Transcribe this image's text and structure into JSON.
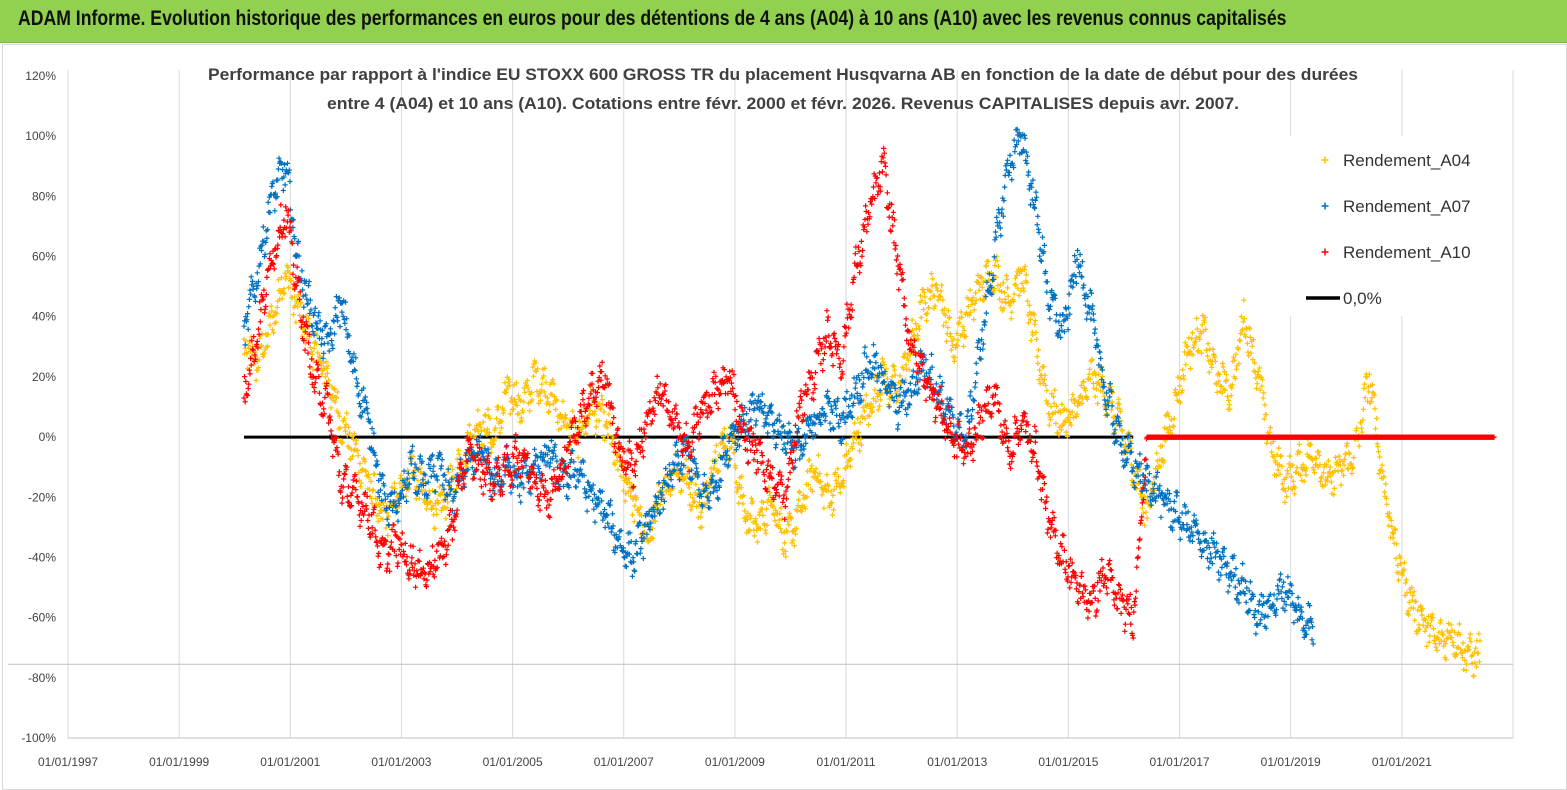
{
  "header": {
    "title": "ADAM Informe. Evolution historique des performances en euros pour des détentions de 4 ans (A04) à 10 ans (A10) avec les revenus connus capitalisés"
  },
  "chart_data": {
    "type": "scatter",
    "title_line1": "Performance par rapport à l'indice EU STOXX 600 GROSS TR  du placement Husqvarna AB en fonction de la date de début pour des durées",
    "title_line2": "entre 4 (A04) et 10 ans (A10). Cotations entre févr. 2000 et févr. 2026. Revenus CAPITALISES depuis avr. 2007.",
    "x_range": [
      "01/01/1997",
      "01/01/2023"
    ],
    "ylim": [
      -100,
      120
    ],
    "y_ticks": [
      "120%",
      "100%",
      "80%",
      "60%",
      "40%",
      "20%",
      "0%",
      "-20%",
      "-40%",
      "-60%",
      "-80%",
      "-100%"
    ],
    "x_ticks": [
      "01/01/1997",
      "01/01/1999",
      "01/01/2001",
      "01/01/2003",
      "01/01/2005",
      "01/01/2007",
      "01/01/2009",
      "01/01/2011",
      "01/01/2013",
      "01/01/2015",
      "01/01/2017",
      "01/01/2019",
      "01/01/2021"
    ],
    "grid": "vertical",
    "legend_position": "top-right",
    "colors": {
      "A04": "#ffc000",
      "A07": "#0070c0",
      "A10": "#ff0000",
      "zero": "#000000"
    },
    "series": [
      {
        "name": "Rendement_A04",
        "points": [
          [
            "2000-03",
            30
          ],
          [
            "2000-06",
            25
          ],
          [
            "2000-09",
            38
          ],
          [
            "2000-12",
            55
          ],
          [
            "2001-03",
            40
          ],
          [
            "2001-06",
            30
          ],
          [
            "2001-09",
            20
          ],
          [
            "2001-12",
            5
          ],
          [
            "2002-03",
            -5
          ],
          [
            "2002-06",
            -15
          ],
          [
            "2002-09",
            -28
          ],
          [
            "2002-12",
            -20
          ],
          [
            "2003-03",
            -10
          ],
          [
            "2003-06",
            -20
          ],
          [
            "2003-09",
            -25
          ],
          [
            "2003-12",
            -15
          ],
          [
            "2004-03",
            -5
          ],
          [
            "2004-06",
            5
          ],
          [
            "2004-09",
            0
          ],
          [
            "2004-12",
            15
          ],
          [
            "2005-03",
            10
          ],
          [
            "2005-06",
            20
          ],
          [
            "2005-09",
            15
          ],
          [
            "2005-12",
            5
          ],
          [
            "2006-03",
            0
          ],
          [
            "2006-06",
            10
          ],
          [
            "2006-09",
            5
          ],
          [
            "2006-12",
            -10
          ],
          [
            "2007-03",
            -20
          ],
          [
            "2007-06",
            -35
          ],
          [
            "2007-09",
            -20
          ],
          [
            "2007-12",
            -10
          ],
          [
            "2008-03",
            -15
          ],
          [
            "2008-06",
            -25
          ],
          [
            "2008-09",
            -5
          ],
          [
            "2008-12",
            0
          ],
          [
            "2009-03",
            -25
          ],
          [
            "2009-06",
            -30
          ],
          [
            "2009-09",
            -20
          ],
          [
            "2009-12",
            -35
          ],
          [
            "2010-03",
            -25
          ],
          [
            "2010-06",
            -10
          ],
          [
            "2010-09",
            -20
          ],
          [
            "2010-12",
            -15
          ],
          [
            "2011-03",
            0
          ],
          [
            "2011-06",
            10
          ],
          [
            "2011-09",
            20
          ],
          [
            "2011-12",
            15
          ],
          [
            "2012-03",
            30
          ],
          [
            "2012-06",
            45
          ],
          [
            "2012-09",
            50
          ],
          [
            "2012-12",
            30
          ],
          [
            "2013-03",
            40
          ],
          [
            "2013-06",
            50
          ],
          [
            "2013-09",
            55
          ],
          [
            "2013-12",
            45
          ],
          [
            "2014-03",
            55
          ],
          [
            "2014-06",
            30
          ],
          [
            "2014-09",
            10
          ],
          [
            "2014-12",
            5
          ],
          [
            "2015-03",
            10
          ],
          [
            "2015-06",
            20
          ],
          [
            "2015-09",
            15
          ],
          [
            "2015-12",
            5
          ],
          [
            "2016-03",
            -10
          ],
          [
            "2016-06",
            -25
          ],
          [
            "2016-09",
            -5
          ],
          [
            "2016-12",
            10
          ],
          [
            "2017-03",
            30
          ],
          [
            "2017-06",
            35
          ],
          [
            "2017-09",
            20
          ],
          [
            "2017-12",
            15
          ],
          [
            "2018-03",
            40
          ],
          [
            "2018-06",
            20
          ],
          [
            "2018-09",
            -5
          ],
          [
            "2018-12",
            -15
          ],
          [
            "2019-03",
            -10
          ],
          [
            "2019-06",
            -5
          ],
          [
            "2019-09",
            -15
          ],
          [
            "2019-12",
            -10
          ],
          [
            "2020-03",
            -5
          ],
          [
            "2020-06",
            20
          ],
          [
            "2020-09",
            -15
          ],
          [
            "2020-12",
            -40
          ],
          [
            "2021-03",
            -55
          ],
          [
            "2021-06",
            -62
          ],
          [
            "2021-09",
            -68
          ],
          [
            "2021-12",
            -65
          ],
          [
            "2022-03",
            -72
          ],
          [
            "2022-06",
            -73
          ]
        ]
      },
      {
        "name": "Rendement_A07",
        "points": [
          [
            "2000-03",
            35
          ],
          [
            "2000-06",
            55
          ],
          [
            "2000-09",
            80
          ],
          [
            "2000-12",
            90
          ],
          [
            "2001-03",
            55
          ],
          [
            "2001-06",
            40
          ],
          [
            "2001-09",
            30
          ],
          [
            "2001-12",
            45
          ],
          [
            "2002-03",
            20
          ],
          [
            "2002-06",
            5
          ],
          [
            "2002-09",
            -20
          ],
          [
            "2002-12",
            -25
          ],
          [
            "2003-03",
            -10
          ],
          [
            "2003-06",
            -15
          ],
          [
            "2003-09",
            -10
          ],
          [
            "2003-12",
            -20
          ],
          [
            "2004-03",
            -10
          ],
          [
            "2004-06",
            -5
          ],
          [
            "2004-09",
            -15
          ],
          [
            "2004-12",
            -10
          ],
          [
            "2005-03",
            -15
          ],
          [
            "2005-06",
            -10
          ],
          [
            "2005-09",
            -5
          ],
          [
            "2005-12",
            -15
          ],
          [
            "2006-03",
            -10
          ],
          [
            "2006-06",
            -20
          ],
          [
            "2006-09",
            -25
          ],
          [
            "2006-12",
            -35
          ],
          [
            "2007-03",
            -40
          ],
          [
            "2007-06",
            -30
          ],
          [
            "2007-09",
            -20
          ],
          [
            "2007-12",
            -10
          ],
          [
            "2008-03",
            -5
          ],
          [
            "2008-06",
            -20
          ],
          [
            "2008-09",
            -15
          ],
          [
            "2008-12",
            0
          ],
          [
            "2009-03",
            5
          ],
          [
            "2009-06",
            10
          ],
          [
            "2009-09",
            5
          ],
          [
            "2009-12",
            0
          ],
          [
            "2010-03",
            -5
          ],
          [
            "2010-06",
            5
          ],
          [
            "2010-09",
            10
          ],
          [
            "2010-12",
            5
          ],
          [
            "2011-03",
            15
          ],
          [
            "2011-06",
            25
          ],
          [
            "2011-09",
            20
          ],
          [
            "2011-12",
            10
          ],
          [
            "2012-03",
            15
          ],
          [
            "2012-06",
            25
          ],
          [
            "2012-09",
            15
          ],
          [
            "2012-12",
            5
          ],
          [
            "2013-03",
            0
          ],
          [
            "2013-06",
            30
          ],
          [
            "2013-09",
            60
          ],
          [
            "2013-12",
            90
          ],
          [
            "2014-03",
            100
          ],
          [
            "2014-06",
            75
          ],
          [
            "2014-09",
            45
          ],
          [
            "2014-12",
            35
          ],
          [
            "2015-03",
            60
          ],
          [
            "2015-06",
            40
          ],
          [
            "2015-09",
            15
          ],
          [
            "2015-12",
            0
          ],
          [
            "2016-03",
            -10
          ],
          [
            "2016-06",
            -15
          ],
          [
            "2016-09",
            -20
          ],
          [
            "2016-12",
            -25
          ],
          [
            "2017-03",
            -30
          ],
          [
            "2017-06",
            -35
          ],
          [
            "2017-09",
            -40
          ],
          [
            "2017-12",
            -45
          ],
          [
            "2018-03",
            -50
          ],
          [
            "2018-06",
            -60
          ],
          [
            "2018-09",
            -55
          ],
          [
            "2018-12",
            -50
          ],
          [
            "2019-03",
            -60
          ],
          [
            "2019-06",
            -63
          ]
        ]
      },
      {
        "name": "Rendement_A10",
        "points": [
          [
            "2000-03",
            15
          ],
          [
            "2000-06",
            35
          ],
          [
            "2000-09",
            60
          ],
          [
            "2000-12",
            75
          ],
          [
            "2001-03",
            45
          ],
          [
            "2001-06",
            20
          ],
          [
            "2001-09",
            10
          ],
          [
            "2001-12",
            -15
          ],
          [
            "2002-03",
            -20
          ],
          [
            "2002-06",
            -25
          ],
          [
            "2002-09",
            -40
          ],
          [
            "2002-12",
            -35
          ],
          [
            "2003-03",
            -42
          ],
          [
            "2003-06",
            -45
          ],
          [
            "2003-09",
            -40
          ],
          [
            "2003-12",
            -30
          ],
          [
            "2004-03",
            -5
          ],
          [
            "2004-06",
            -10
          ],
          [
            "2004-09",
            -15
          ],
          [
            "2004-12",
            -10
          ],
          [
            "2005-03",
            -5
          ],
          [
            "2005-06",
            -15
          ],
          [
            "2005-09",
            -20
          ],
          [
            "2005-12",
            -10
          ],
          [
            "2006-03",
            5
          ],
          [
            "2006-06",
            15
          ],
          [
            "2006-09",
            20
          ],
          [
            "2006-12",
            -5
          ],
          [
            "2007-03",
            -10
          ],
          [
            "2007-06",
            5
          ],
          [
            "2007-09",
            15
          ],
          [
            "2007-12",
            5
          ],
          [
            "2008-03",
            -5
          ],
          [
            "2008-06",
            10
          ],
          [
            "2008-09",
            15
          ],
          [
            "2008-12",
            20
          ],
          [
            "2009-03",
            0
          ],
          [
            "2009-06",
            -5
          ],
          [
            "2009-09",
            -15
          ],
          [
            "2009-12",
            -20
          ],
          [
            "2010-03",
            10
          ],
          [
            "2010-06",
            20
          ],
          [
            "2010-09",
            35
          ],
          [
            "2010-12",
            25
          ],
          [
            "2011-03",
            55
          ],
          [
            "2011-06",
            75
          ],
          [
            "2011-09",
            90
          ],
          [
            "2011-12",
            60
          ],
          [
            "2012-03",
            30
          ],
          [
            "2012-06",
            20
          ],
          [
            "2012-09",
            10
          ],
          [
            "2012-12",
            0
          ],
          [
            "2013-03",
            -5
          ],
          [
            "2013-06",
            5
          ],
          [
            "2013-09",
            15
          ],
          [
            "2013-12",
            -5
          ],
          [
            "2014-03",
            5
          ],
          [
            "2014-06",
            -5
          ],
          [
            "2014-09",
            -30
          ],
          [
            "2014-12",
            -40
          ],
          [
            "2015-03",
            -50
          ],
          [
            "2015-06",
            -55
          ],
          [
            "2015-09",
            -45
          ],
          [
            "2015-12",
            -55
          ],
          [
            "2016-03",
            -60
          ],
          [
            "2016-06",
            0
          ],
          [
            "2017-06",
            0
          ],
          [
            "2018-06",
            0
          ],
          [
            "2019-06",
            0
          ],
          [
            "2020-06",
            0
          ],
          [
            "2021-06",
            0
          ],
          [
            "2022-09",
            0
          ]
        ]
      }
    ],
    "zero_line": {
      "name": "0,0%",
      "from": "2000-03",
      "to": "2016-03",
      "value": 0
    }
  }
}
